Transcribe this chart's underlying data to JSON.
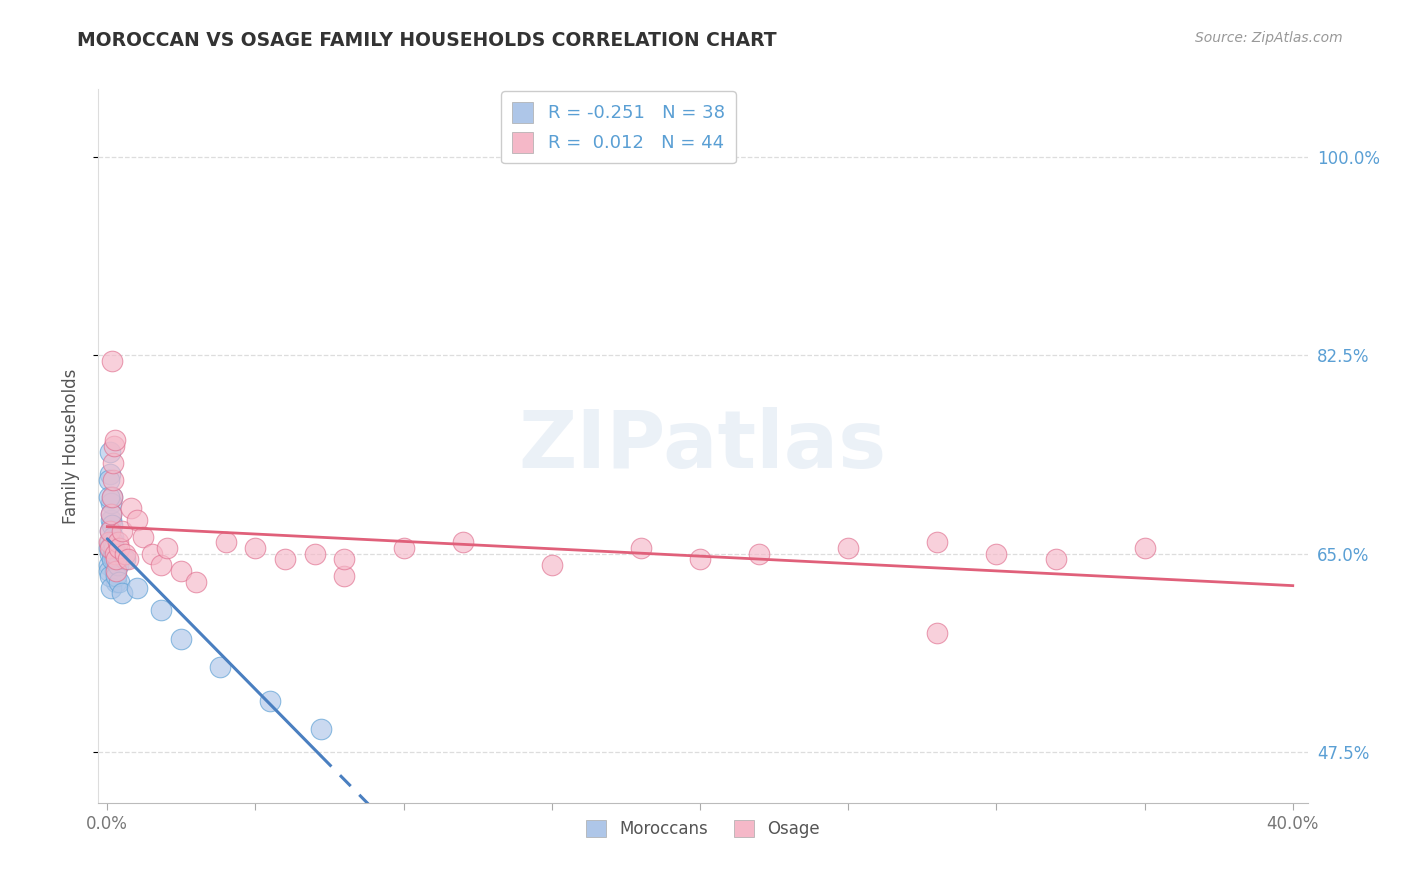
{
  "title": "MOROCCAN VS OSAGE FAMILY HOUSEHOLDS CORRELATION CHART",
  "source_text": "Source: ZipAtlas.com",
  "ylabel": "Family Households",
  "xlim": [
    -0.3,
    40.5
  ],
  "ylim": [
    43.0,
    106.0
  ],
  "yticks": [
    47.5,
    65.0,
    82.5,
    100.0
  ],
  "xticks": [
    0.0,
    5.0,
    10.0,
    15.0,
    20.0,
    25.0,
    30.0,
    35.0,
    40.0
  ],
  "xtick_labels_show": [
    "0.0%",
    "",
    "",
    "",
    "",
    "",
    "",
    "",
    "40.0%"
  ],
  "ytick_labels_right": [
    "47.5%",
    "65.0%",
    "82.5%",
    "100.0%"
  ],
  "blue_R": -0.251,
  "blue_N": 38,
  "pink_R": 0.012,
  "pink_N": 44,
  "blue_fill": "#aec6e8",
  "pink_fill": "#f5b8c8",
  "blue_edge": "#5a9fd4",
  "pink_edge": "#e07090",
  "blue_line": "#4a7fc0",
  "pink_line": "#e0607a",
  "legend_blue": "Moroccans",
  "legend_pink": "Osage",
  "watermark": "ZIPatlas",
  "title_color": "#333333",
  "source_color": "#999999",
  "axis_label_color": "#555555",
  "tick_color": "#777777",
  "right_tick_color": "#5a9fd4",
  "grid_color": "#dddddd",
  "moroccans_x": [
    0.05,
    0.08,
    0.1,
    0.12,
    0.15,
    0.05,
    0.07,
    0.09,
    0.1,
    0.12,
    0.14,
    0.16,
    0.18,
    0.2,
    0.22,
    0.25,
    0.28,
    0.3,
    0.32,
    0.05,
    0.06,
    0.08,
    0.1,
    0.12,
    0.15,
    0.18,
    0.22,
    0.28,
    0.35,
    0.4,
    0.5,
    0.6,
    1.0,
    1.8,
    2.5,
    3.8,
    5.5,
    7.2
  ],
  "moroccans_y": [
    65.5,
    67.0,
    66.0,
    68.0,
    70.0,
    64.0,
    63.5,
    65.0,
    72.0,
    69.5,
    68.5,
    67.5,
    66.5,
    65.0,
    64.5,
    63.5,
    62.5,
    64.0,
    65.0,
    71.5,
    70.0,
    74.0,
    63.0,
    62.0,
    64.5,
    66.0,
    65.5,
    63.0,
    64.0,
    62.5,
    61.5,
    64.5,
    62.0,
    60.0,
    57.5,
    55.0,
    52.0,
    49.5
  ],
  "osage_x": [
    0.05,
    0.08,
    0.1,
    0.12,
    0.15,
    0.18,
    0.2,
    0.22,
    0.25,
    0.28,
    0.3,
    0.35,
    0.4,
    0.5,
    0.6,
    0.7,
    0.8,
    1.0,
    1.2,
    1.5,
    1.8,
    2.0,
    2.5,
    3.0,
    4.0,
    5.0,
    6.0,
    7.0,
    8.0,
    10.0,
    12.0,
    15.0,
    18.0,
    20.0,
    22.0,
    25.0,
    28.0,
    30.0,
    32.0,
    35.0,
    0.15,
    0.25,
    8.0,
    28.0
  ],
  "osage_y": [
    66.0,
    65.5,
    67.0,
    68.5,
    70.0,
    71.5,
    73.0,
    74.5,
    65.0,
    63.5,
    64.5,
    66.0,
    65.5,
    67.0,
    65.0,
    64.5,
    69.0,
    68.0,
    66.5,
    65.0,
    64.0,
    65.5,
    63.5,
    62.5,
    66.0,
    65.5,
    64.5,
    65.0,
    63.0,
    65.5,
    66.0,
    64.0,
    65.5,
    64.5,
    65.0,
    65.5,
    66.0,
    65.0,
    64.5,
    65.5,
    82.0,
    75.0,
    64.5,
    58.0
  ]
}
